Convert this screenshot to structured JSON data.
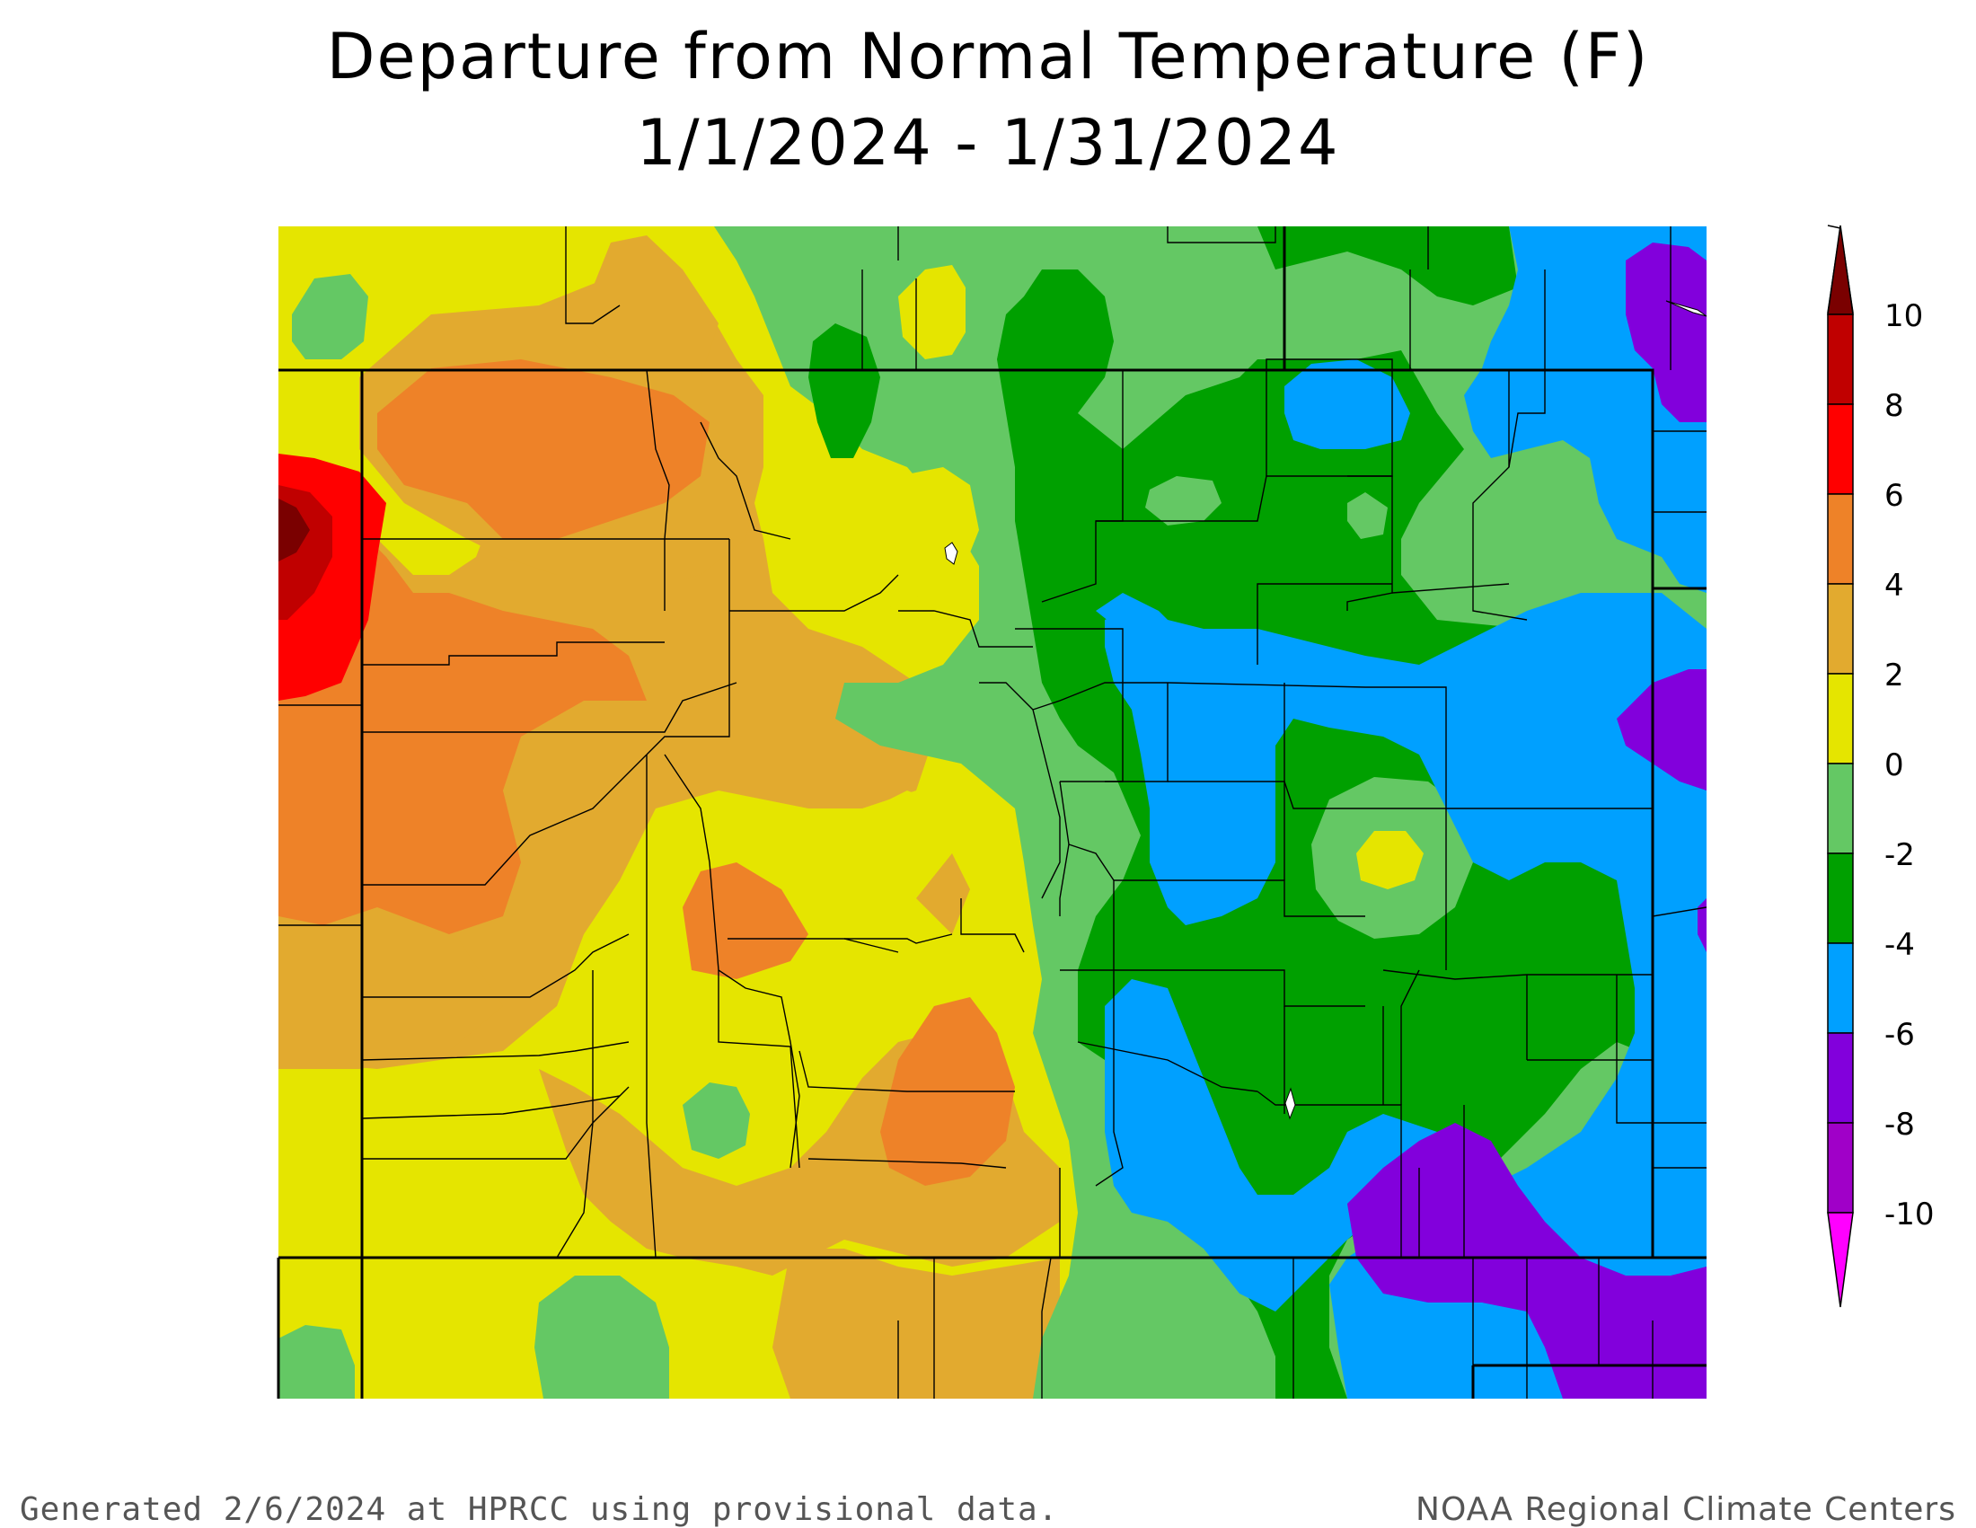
{
  "title_line1": "Departure from Normal Temperature (F)",
  "title_line2": "1/1/2024 - 1/31/2024",
  "legend": {
    "ticks": [
      "10",
      "8",
      "6",
      "4",
      "2",
      "0",
      "-2",
      "-4",
      "-6",
      "-8",
      "-10"
    ],
    "bins": [
      {
        "range": "> 10",
        "color": "#7a0000"
      },
      {
        "range": "8 to 10",
        "color": "#c00000"
      },
      {
        "range": "6 to 8",
        "color": "#ff0000"
      },
      {
        "range": "4 to 6",
        "color": "#ee8228"
      },
      {
        "range": "2 to 4",
        "color": "#e2aa2f"
      },
      {
        "range": "0 to 2",
        "color": "#e5e500"
      },
      {
        "range": "-2 to 0",
        "color": "#64c864"
      },
      {
        "range": "-4 to -2",
        "color": "#00a000"
      },
      {
        "range": "-6 to -4",
        "color": "#00a0ff"
      },
      {
        "range": "-8 to -6",
        "color": "#8200dc"
      },
      {
        "range": "-10 to -8",
        "color": "#a000c8"
      },
      {
        "range": "< -10",
        "color": "#ff00ff"
      }
    ]
  },
  "footer_left": "Generated 2/6/2024 at HPRCC using provisional data.",
  "footer_right": "NOAA Regional Climate Centers"
}
